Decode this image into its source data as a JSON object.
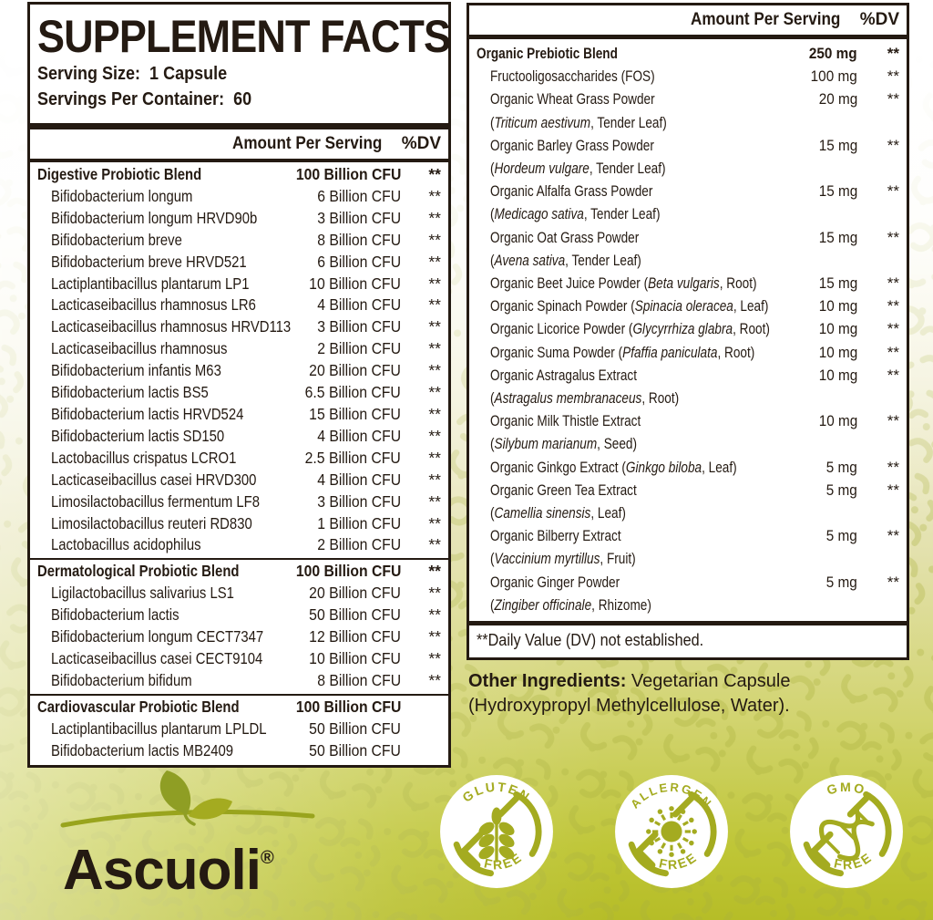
{
  "title": "SUPPLEMENT FACTS",
  "serving": {
    "size_label": "Serving Size:",
    "size_value": "1 Capsule",
    "count_label": "Servings Per Container:",
    "count_value": "60"
  },
  "columns": {
    "amount": "Amount Per Serving",
    "dv": "%DV"
  },
  "left_table": {
    "sections": [
      {
        "name": "Digestive Probiotic Blend",
        "amount": "100 Billion CFU",
        "dv": "**",
        "rows": [
          {
            "name": "Bifidobacterium longum",
            "amount": "6 Billion CFU",
            "dv": "**"
          },
          {
            "name": "Bifidobacterium longum HRVD90b",
            "amount": "3 Billion CFU",
            "dv": "**"
          },
          {
            "name": "Bifidobacterium breve",
            "amount": "8 Billion CFU",
            "dv": "**"
          },
          {
            "name": "Bifidobacterium breve HRVD521",
            "amount": "6 Billion CFU",
            "dv": "**"
          },
          {
            "name": "Lactiplantibacillus plantarum LP1",
            "amount": "10 Billion CFU",
            "dv": "**"
          },
          {
            "name": "Lacticaseibacillus rhamnosus LR6",
            "amount": "4 Billion CFU",
            "dv": "**"
          },
          {
            "name": "Lacticaseibacillus rhamnosus HRVD113",
            "amount": "3 Billion CFU",
            "dv": "**"
          },
          {
            "name": "Lacticaseibacillus rhamnosus",
            "amount": "2 Billion CFU",
            "dv": "**"
          },
          {
            "name": "Bifidobacterium infantis M63",
            "amount": "20 Billion CFU",
            "dv": "**"
          },
          {
            "name": "Bifidobacterium lactis BS5",
            "amount": "6.5 Billion CFU",
            "dv": "**"
          },
          {
            "name": "Bifidobacterium lactis HRVD524",
            "amount": "15 Billion CFU",
            "dv": "**"
          },
          {
            "name": "Bifidobacterium lactis SD150",
            "amount": "4 Billion CFU",
            "dv": "**"
          },
          {
            "name": "Lactobacillus crispatus LCRO1",
            "amount": "2.5 Billion CFU",
            "dv": "**"
          },
          {
            "name": "Lacticaseibacillus casei HRVD300",
            "amount": "4 Billion CFU",
            "dv": "**"
          },
          {
            "name": "Limosilactobacillus fermentum LF8",
            "amount": "3 Billion CFU",
            "dv": "**"
          },
          {
            "name": "Limosilactobacillus reuteri RD830",
            "amount": "1 Billion CFU",
            "dv": "**"
          },
          {
            "name": "Lactobacillus acidophilus",
            "amount": "2 Billion CFU",
            "dv": "**"
          }
        ]
      },
      {
        "name": "Dermatological Probiotic Blend",
        "amount": "100 Billion CFU",
        "dv": "**",
        "rows": [
          {
            "name": "Ligilactobacillus salivarius LS1",
            "amount": "20 Billion CFU",
            "dv": "**"
          },
          {
            "name": "Bifidobacterium lactis",
            "amount": "50 Billion CFU",
            "dv": "**"
          },
          {
            "name": "Bifidobacterium longum CECT7347",
            "amount": "12 Billion CFU",
            "dv": "**"
          },
          {
            "name": "Lacticaseibacillus casei CECT9104",
            "amount": "10 Billion CFU",
            "dv": "**"
          },
          {
            "name": "Bifidobacterium bifidum",
            "amount": "8 Billion CFU",
            "dv": "**"
          }
        ]
      },
      {
        "name": "Cardiovascular Probiotic Blend",
        "amount": "100 Billion CFU",
        "dv": "",
        "rows": [
          {
            "name": "Lactiplantibacillus plantarum LPLDL",
            "amount": "50 Billion CFU",
            "dv": ""
          },
          {
            "name": "Bifidobacterium lactis MB2409",
            "amount": "50 Billion CFU",
            "dv": ""
          }
        ]
      }
    ]
  },
  "right_table": {
    "rows": [
      {
        "name": [
          "Organic Prebiotic Blend"
        ],
        "amount": "250 mg",
        "dv": "**",
        "bold": true
      },
      {
        "name": [
          "Fructooligosaccharides (FOS)"
        ],
        "amount": "100 mg",
        "dv": "**"
      },
      {
        "name": [
          "Organic Wheat Grass Powder"
        ],
        "amount": "20 mg",
        "dv": "**",
        "sub": [
          "(",
          {
            "i": "Triticum aestivum"
          },
          ", Tender Leaf)"
        ]
      },
      {
        "name": [
          "Organic Barley Grass Powder"
        ],
        "amount": "15 mg",
        "dv": "**",
        "sub": [
          "(",
          {
            "i": "Hordeum vulgare"
          },
          ", Tender Leaf)"
        ]
      },
      {
        "name": [
          "Organic Alfalfa Grass Powder"
        ],
        "amount": "15 mg",
        "dv": "**",
        "sub": [
          "(",
          {
            "i": "Medicago sativa"
          },
          ", Tender Leaf)"
        ]
      },
      {
        "name": [
          "Organic Oat Grass Powder"
        ],
        "amount": "15 mg",
        "dv": "**",
        "sub": [
          "(",
          {
            "i": "Avena sativa"
          },
          ", Tender Leaf)"
        ]
      },
      {
        "name": [
          "Organic Beet Juice Powder (",
          {
            "i": "Beta vulgaris"
          },
          ", Root)"
        ],
        "amount": "15 mg",
        "dv": "**"
      },
      {
        "name": [
          "Organic Spinach Powder (",
          {
            "i": "Spinacia oleracea"
          },
          ", Leaf)"
        ],
        "amount": "10 mg",
        "dv": "**"
      },
      {
        "name": [
          "Organic Licorice Powder (",
          {
            "i": "Glycyrrhiza glabra"
          },
          ", Root)"
        ],
        "amount": "10 mg",
        "dv": "**"
      },
      {
        "name": [
          "Organic Suma Powder (",
          {
            "i": "Pfaffia paniculata"
          },
          ", Root)"
        ],
        "amount": "10 mg",
        "dv": "**"
      },
      {
        "name": [
          "Organic Astragalus Extract"
        ],
        "amount": "10 mg",
        "dv": "**",
        "sub": [
          "(",
          {
            "i": "Astragalus membranaceus"
          },
          ", Root)"
        ]
      },
      {
        "name": [
          "Organic Milk Thistle Extract"
        ],
        "amount": "10 mg",
        "dv": "**",
        "sub": [
          "(",
          {
            "i": "Silybum marianum"
          },
          ", Seed)"
        ]
      },
      {
        "name": [
          "Organic Ginkgo Extract (",
          {
            "i": "Ginkgo biloba"
          },
          ", Leaf)"
        ],
        "amount": "5 mg",
        "dv": "**"
      },
      {
        "name": [
          "Organic Green Tea Extract"
        ],
        "amount": "5 mg",
        "dv": "**",
        "sub": [
          "(",
          {
            "i": "Camellia sinensis"
          },
          ", Leaf)"
        ]
      },
      {
        "name": [
          "Organic Bilberry Extract"
        ],
        "amount": "5 mg",
        "dv": "**",
        "sub": [
          "(",
          {
            "i": "Vaccinium myrtillus"
          },
          ", Fruit)"
        ]
      },
      {
        "name": [
          "Organic Ginger Powder"
        ],
        "amount": "5 mg",
        "dv": "**",
        "sub": [
          "(",
          {
            "i": "Zingiber officinale"
          },
          ", Rhizome)"
        ]
      }
    ]
  },
  "footnote": "**Daily Value (DV) not established.",
  "other_ingredients": {
    "label": "Other Ingredients:",
    "text": " Vegetarian Capsule (Hydroxypropyl Methylcellulose, Water)."
  },
  "brand": {
    "name": "Ascuoli",
    "mark": "®"
  },
  "badges": [
    {
      "top": "GLUTEN",
      "bottom": "FREE",
      "icon": "wheat-icon"
    },
    {
      "top": "ALLERGEN",
      "bottom": "FREE",
      "icon": "allergen-icon"
    },
    {
      "top": "GMO",
      "bottom": "FREE",
      "icon": "dna-icon"
    }
  ],
  "colors": {
    "olive": "#a4ab20",
    "ink": "#241a12",
    "bg_bottom": "#bcc32e"
  }
}
